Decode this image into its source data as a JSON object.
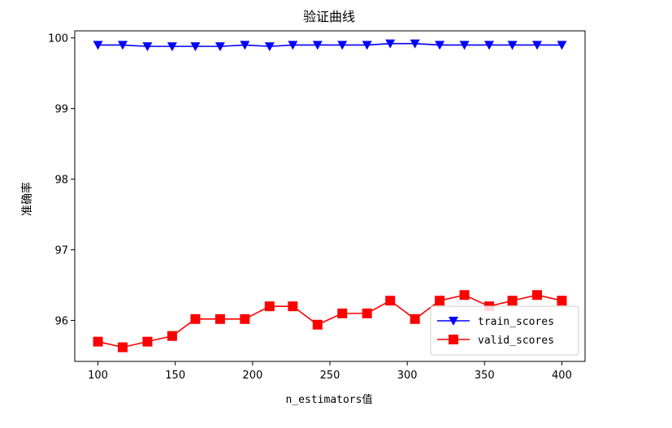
{
  "chart_data": {
    "type": "line",
    "title": "验证曲线",
    "xlabel": "n_estimators值",
    "ylabel": "准确率",
    "xlim": [
      85,
      415
    ],
    "ylim": [
      95.42,
      100.1
    ],
    "xticks": [
      100,
      150,
      200,
      250,
      300,
      350,
      400
    ],
    "yticks": [
      96,
      97,
      98,
      99,
      100
    ],
    "grid": false,
    "legend_position": "lower-right",
    "x": [
      100,
      116,
      132,
      148,
      163,
      179,
      195,
      211,
      226,
      242,
      258,
      274,
      289,
      305,
      321,
      337,
      353,
      368,
      384,
      400
    ],
    "series": [
      {
        "name": "train_scores",
        "color": "#0000ff",
        "marker": "triangle-down",
        "values": [
          99.9,
          99.9,
          99.88,
          99.88,
          99.88,
          99.88,
          99.9,
          99.88,
          99.9,
          99.9,
          99.9,
          99.9,
          99.92,
          99.92,
          99.9,
          99.9,
          99.9,
          99.9,
          99.9,
          99.9
        ]
      },
      {
        "name": "valid_scores",
        "color": "#ff0000",
        "marker": "square",
        "values": [
          95.7,
          95.62,
          95.7,
          95.78,
          96.02,
          96.02,
          96.02,
          96.2,
          96.2,
          95.94,
          96.1,
          96.1,
          96.28,
          96.02,
          96.28,
          96.36,
          96.2,
          96.28,
          96.36,
          96.28
        ]
      }
    ]
  }
}
